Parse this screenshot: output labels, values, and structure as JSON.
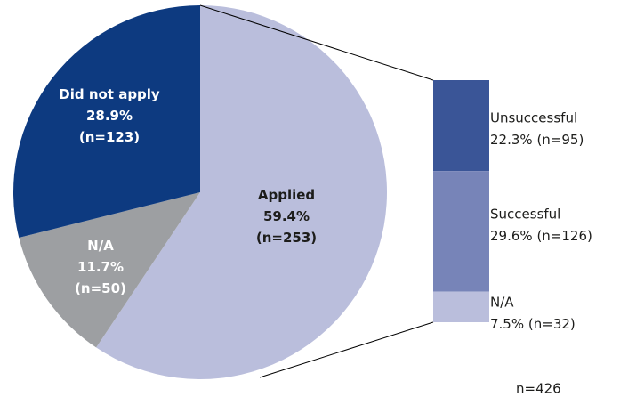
{
  "chart_data": [
    {
      "type": "pie",
      "categories": [
        "Applied",
        "N/A",
        "Did not apply"
      ],
      "values": [
        59.4,
        11.7,
        28.9
      ],
      "value_labels": [
        "59.4%",
        "11.7%",
        "28.9%"
      ],
      "counts": [
        253,
        50,
        123
      ],
      "count_labels": [
        "(n=253)",
        "(n=50)",
        "(n=123)"
      ],
      "colors": [
        "#babedc",
        "#9d9fa2",
        "#0d3a80"
      ]
    },
    {
      "type": "bar",
      "categories": [
        "Unsuccessful",
        "Successful",
        "N/A"
      ],
      "values": [
        22.3,
        29.6,
        7.5
      ],
      "value_labels": [
        "22.3%",
        "29.6%",
        "7.5%"
      ],
      "counts": [
        95,
        126,
        32
      ],
      "count_labels": [
        "(n=95)",
        "(n=126)",
        "(n=32)"
      ],
      "colors": [
        "#3a5597",
        "#7784b8",
        "#babedc"
      ]
    }
  ],
  "note": "n=426"
}
